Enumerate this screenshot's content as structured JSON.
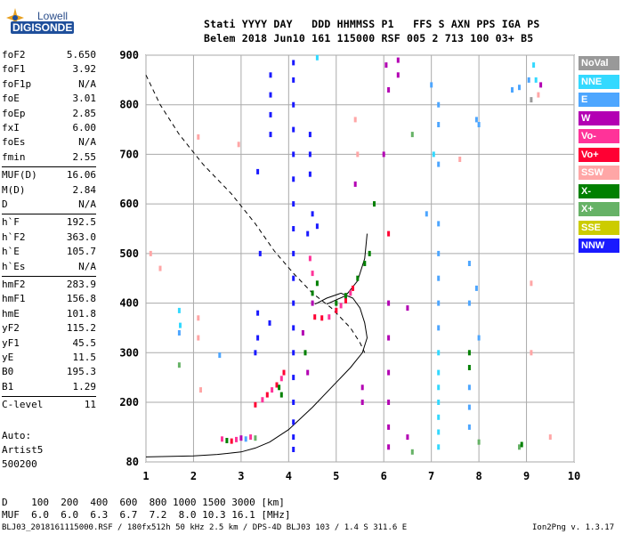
{
  "logo": {
    "top": "Lowell",
    "main": "DIGISONDE"
  },
  "header": {
    "line1": "Stati YYYY DAY   DDD HHMMSS P1   FFS S AXN PPS IGA PS",
    "line2": "Belem 2018 Jun10 161 115000 RSF 005 2 713 100 03+ B5"
  },
  "params": [
    {
      "name": "foF2",
      "value": "5.650"
    },
    {
      "name": "foF1",
      "value": "3.92"
    },
    {
      "name": "foF1p",
      "value": "N/A"
    },
    {
      "name": "foE",
      "value": "3.01"
    },
    {
      "name": "foEp",
      "value": "2.85"
    },
    {
      "name": "fxI",
      "value": "6.00"
    },
    {
      "name": "foEs",
      "value": "N/A"
    },
    {
      "name": "fmin",
      "value": "2.55"
    },
    {
      "name": "MUF(D)",
      "value": "16.06"
    },
    {
      "name": "M(D)",
      "value": "2.84"
    },
    {
      "name": "D",
      "value": "N/A"
    },
    {
      "name": "h`F",
      "value": "192.5"
    },
    {
      "name": "h`F2",
      "value": "363.0"
    },
    {
      "name": "h`E",
      "value": "105.7"
    },
    {
      "name": "h`Es",
      "value": "N/A"
    },
    {
      "name": "hmF2",
      "value": "283.9"
    },
    {
      "name": "hmF1",
      "value": "156.8"
    },
    {
      "name": "hmE",
      "value": "101.8"
    },
    {
      "name": "yF2",
      "value": "115.2"
    },
    {
      "name": "yF1",
      "value": "45.5"
    },
    {
      "name": "yE",
      "value": "11.5"
    },
    {
      "name": "B0",
      "value": "195.3"
    },
    {
      "name": "B1",
      "value": "1.29"
    },
    {
      "name": "C-level",
      "value": "11"
    }
  ],
  "auto": {
    "line1": "Auto:",
    "line2": "Artist5",
    "line3": "500200"
  },
  "legend": [
    {
      "label": "NoVal",
      "color": "#999999"
    },
    {
      "label": "NNE",
      "color": "#33d9ff"
    },
    {
      "label": "E",
      "color": "#4da6ff"
    },
    {
      "label": "W",
      "color": "#b300b3"
    },
    {
      "label": "Vo-",
      "color": "#ff3399"
    },
    {
      "label": "Vo+",
      "color": "#ff0033"
    },
    {
      "label": "SSW",
      "color": "#ffa6a6"
    },
    {
      "label": "X-",
      "color": "#008000"
    },
    {
      "label": "X+",
      "color": "#66b266"
    },
    {
      "label": "SSE",
      "color": "#cccc00"
    },
    {
      "label": "NNW",
      "color": "#1a1aff"
    }
  ],
  "chart_data": {
    "type": "scatter",
    "xlim": [
      1,
      10
    ],
    "ylim": [
      80,
      900
    ],
    "x_ticks": [
      "1",
      "2",
      "3",
      "4",
      "5",
      "6",
      "7",
      "8",
      "9",
      "10"
    ],
    "y_ticks": [
      "80",
      "200",
      "300",
      "400",
      "500",
      "600",
      "700",
      "800",
      "900"
    ],
    "grid": true,
    "profile_solid": {
      "x": [
        1.0,
        2.0,
        2.5,
        3.0,
        3.3,
        3.6,
        4.0,
        4.5,
        5.0,
        5.3,
        5.55,
        5.65,
        5.6,
        5.5,
        5.35,
        5.1,
        4.8,
        4.6,
        4.55
      ],
      "y": [
        90,
        92,
        95,
        100,
        108,
        120,
        145,
        190,
        240,
        270,
        300,
        330,
        360,
        390,
        410,
        420,
        410,
        400,
        398
      ]
    },
    "profile_upper_solid": {
      "x": [
        4.8,
        5.2,
        5.45,
        5.6,
        5.65
      ],
      "y": [
        398,
        415,
        445,
        490,
        540
      ]
    },
    "profile_dashed": {
      "x": [
        1.0,
        1.3,
        1.7,
        2.2,
        2.8,
        3.3,
        3.7,
        4.1,
        4.5,
        4.9,
        5.3,
        5.5,
        5.6
      ],
      "y": [
        860,
        800,
        740,
        680,
        620,
        560,
        505,
        460,
        420,
        390,
        350,
        320,
        300
      ]
    },
    "points": [
      {
        "x": 1.1,
        "y": 500,
        "dir": "SSW"
      },
      {
        "x": 1.3,
        "y": 470,
        "dir": "SSW"
      },
      {
        "x": 1.7,
        "y": 385,
        "dir": "NNE"
      },
      {
        "x": 1.72,
        "y": 355,
        "dir": "NNE"
      },
      {
        "x": 1.7,
        "y": 340,
        "dir": "E"
      },
      {
        "x": 1.7,
        "y": 275,
        "dir": "X+"
      },
      {
        "x": 2.1,
        "y": 370,
        "dir": "SSW"
      },
      {
        "x": 2.1,
        "y": 330,
        "dir": "SSW"
      },
      {
        "x": 2.15,
        "y": 225,
        "dir": "SSW"
      },
      {
        "x": 2.55,
        "y": 295,
        "dir": "E"
      },
      {
        "x": 2.95,
        "y": 720,
        "dir": "SSW"
      },
      {
        "x": 2.1,
        "y": 735,
        "dir": "SSW"
      },
      {
        "x": 2.7,
        "y": 123,
        "dir": "X-"
      },
      {
        "x": 2.8,
        "y": 122,
        "dir": "Vo+"
      },
      {
        "x": 2.9,
        "y": 125,
        "dir": "Vo-"
      },
      {
        "x": 3.0,
        "y": 128,
        "dir": "W"
      },
      {
        "x": 3.1,
        "y": 126,
        "dir": "E"
      },
      {
        "x": 3.2,
        "y": 130,
        "dir": "Vo-"
      },
      {
        "x": 3.3,
        "y": 128,
        "dir": "X+"
      },
      {
        "x": 2.6,
        "y": 126,
        "dir": "Vo-"
      },
      {
        "x": 3.35,
        "y": 665,
        "dir": "NNW"
      },
      {
        "x": 3.4,
        "y": 500,
        "dir": "NNW"
      },
      {
        "x": 3.35,
        "y": 380,
        "dir": "NNW"
      },
      {
        "x": 3.35,
        "y": 330,
        "dir": "NNW"
      },
      {
        "x": 3.3,
        "y": 300,
        "dir": "NNW"
      },
      {
        "x": 3.3,
        "y": 195,
        "dir": "Vo+"
      },
      {
        "x": 3.45,
        "y": 205,
        "dir": "Vo-"
      },
      {
        "x": 3.55,
        "y": 215,
        "dir": "Vo+"
      },
      {
        "x": 3.65,
        "y": 225,
        "dir": "Vo-"
      },
      {
        "x": 3.75,
        "y": 235,
        "dir": "Vo+"
      },
      {
        "x": 3.85,
        "y": 248,
        "dir": "Vo-"
      },
      {
        "x": 3.9,
        "y": 260,
        "dir": "Vo+"
      },
      {
        "x": 3.8,
        "y": 230,
        "dir": "X-"
      },
      {
        "x": 3.85,
        "y": 215,
        "dir": "X-"
      },
      {
        "x": 3.62,
        "y": 860,
        "dir": "NNW"
      },
      {
        "x": 3.62,
        "y": 820,
        "dir": "NNW"
      },
      {
        "x": 3.62,
        "y": 780,
        "dir": "NNW"
      },
      {
        "x": 3.62,
        "y": 740,
        "dir": "NNW"
      },
      {
        "x": 3.6,
        "y": 360,
        "dir": "NNW"
      },
      {
        "x": 4.1,
        "y": 885,
        "dir": "NNW"
      },
      {
        "x": 4.1,
        "y": 850,
        "dir": "NNW"
      },
      {
        "x": 4.1,
        "y": 800,
        "dir": "NNW"
      },
      {
        "x": 4.1,
        "y": 750,
        "dir": "NNW"
      },
      {
        "x": 4.1,
        "y": 700,
        "dir": "NNW"
      },
      {
        "x": 4.1,
        "y": 650,
        "dir": "NNW"
      },
      {
        "x": 4.1,
        "y": 600,
        "dir": "NNW"
      },
      {
        "x": 4.1,
        "y": 550,
        "dir": "NNW"
      },
      {
        "x": 4.1,
        "y": 500,
        "dir": "NNW"
      },
      {
        "x": 4.1,
        "y": 450,
        "dir": "NNW"
      },
      {
        "x": 4.1,
        "y": 400,
        "dir": "NNW"
      },
      {
        "x": 4.1,
        "y": 350,
        "dir": "NNW"
      },
      {
        "x": 4.1,
        "y": 300,
        "dir": "NNW"
      },
      {
        "x": 4.1,
        "y": 250,
        "dir": "NNW"
      },
      {
        "x": 4.1,
        "y": 200,
        "dir": "NNW"
      },
      {
        "x": 4.1,
        "y": 160,
        "dir": "NNW"
      },
      {
        "x": 4.1,
        "y": 130,
        "dir": "NNW"
      },
      {
        "x": 4.1,
        "y": 105,
        "dir": "NNW"
      },
      {
        "x": 4.45,
        "y": 740,
        "dir": "NNW"
      },
      {
        "x": 4.45,
        "y": 700,
        "dir": "NNW"
      },
      {
        "x": 4.45,
        "y": 660,
        "dir": "NNW"
      },
      {
        "x": 4.5,
        "y": 580,
        "dir": "NNW"
      },
      {
        "x": 4.4,
        "y": 540,
        "dir": "NNW"
      },
      {
        "x": 4.45,
        "y": 490,
        "dir": "Vo-"
      },
      {
        "x": 4.5,
        "y": 460,
        "dir": "Vo-"
      },
      {
        "x": 4.6,
        "y": 440,
        "dir": "X-"
      },
      {
        "x": 4.5,
        "y": 420,
        "dir": "X-"
      },
      {
        "x": 4.5,
        "y": 400,
        "dir": "W"
      },
      {
        "x": 4.55,
        "y": 372,
        "dir": "Vo+"
      },
      {
        "x": 4.7,
        "y": 370,
        "dir": "Vo+"
      },
      {
        "x": 4.85,
        "y": 372,
        "dir": "Vo-"
      },
      {
        "x": 5.0,
        "y": 385,
        "dir": "Vo+"
      },
      {
        "x": 5.1,
        "y": 395,
        "dir": "Vo-"
      },
      {
        "x": 5.2,
        "y": 405,
        "dir": "Vo+"
      },
      {
        "x": 5.3,
        "y": 420,
        "dir": "Vo-"
      },
      {
        "x": 5.35,
        "y": 430,
        "dir": "Vo+"
      },
      {
        "x": 5.0,
        "y": 400,
        "dir": "X-"
      },
      {
        "x": 5.2,
        "y": 415,
        "dir": "X-"
      },
      {
        "x": 5.45,
        "y": 450,
        "dir": "X-"
      },
      {
        "x": 5.6,
        "y": 480,
        "dir": "X-"
      },
      {
        "x": 5.7,
        "y": 500,
        "dir": "X-"
      },
      {
        "x": 5.8,
        "y": 600,
        "dir": "X-"
      },
      {
        "x": 4.3,
        "y": 340,
        "dir": "W"
      },
      {
        "x": 4.35,
        "y": 300,
        "dir": "X-"
      },
      {
        "x": 4.4,
        "y": 260,
        "dir": "W"
      },
      {
        "x": 4.6,
        "y": 555,
        "dir": "NNW"
      },
      {
        "x": 4.6,
        "y": 895,
        "dir": "NNE"
      },
      {
        "x": 5.4,
        "y": 640,
        "dir": "W"
      },
      {
        "x": 5.45,
        "y": 700,
        "dir": "SSW"
      },
      {
        "x": 5.4,
        "y": 770,
        "dir": "SSW"
      },
      {
        "x": 5.55,
        "y": 230,
        "dir": "W"
      },
      {
        "x": 5.55,
        "y": 200,
        "dir": "W"
      },
      {
        "x": 6.05,
        "y": 880,
        "dir": "W"
      },
      {
        "x": 6.1,
        "y": 830,
        "dir": "W"
      },
      {
        "x": 6.0,
        "y": 700,
        "dir": "W"
      },
      {
        "x": 6.1,
        "y": 540,
        "dir": "Vo+"
      },
      {
        "x": 6.1,
        "y": 400,
        "dir": "W"
      },
      {
        "x": 6.1,
        "y": 330,
        "dir": "W"
      },
      {
        "x": 6.1,
        "y": 260,
        "dir": "W"
      },
      {
        "x": 6.1,
        "y": 200,
        "dir": "W"
      },
      {
        "x": 6.1,
        "y": 150,
        "dir": "W"
      },
      {
        "x": 6.1,
        "y": 110,
        "dir": "W"
      },
      {
        "x": 6.3,
        "y": 890,
        "dir": "W"
      },
      {
        "x": 6.3,
        "y": 860,
        "dir": "W"
      },
      {
        "x": 6.5,
        "y": 390,
        "dir": "W"
      },
      {
        "x": 6.5,
        "y": 130,
        "dir": "W"
      },
      {
        "x": 6.6,
        "y": 100,
        "dir": "X+"
      },
      {
        "x": 6.6,
        "y": 740,
        "dir": "X+"
      },
      {
        "x": 6.9,
        "y": 580,
        "dir": "E"
      },
      {
        "x": 7.0,
        "y": 840,
        "dir": "E"
      },
      {
        "x": 7.05,
        "y": 700,
        "dir": "NNE"
      },
      {
        "x": 7.15,
        "y": 800,
        "dir": "E"
      },
      {
        "x": 7.15,
        "y": 760,
        "dir": "E"
      },
      {
        "x": 7.15,
        "y": 680,
        "dir": "E"
      },
      {
        "x": 7.15,
        "y": 560,
        "dir": "E"
      },
      {
        "x": 7.15,
        "y": 500,
        "dir": "E"
      },
      {
        "x": 7.15,
        "y": 450,
        "dir": "E"
      },
      {
        "x": 7.15,
        "y": 400,
        "dir": "E"
      },
      {
        "x": 7.15,
        "y": 350,
        "dir": "E"
      },
      {
        "x": 7.15,
        "y": 300,
        "dir": "NNE"
      },
      {
        "x": 7.15,
        "y": 260,
        "dir": "NNE"
      },
      {
        "x": 7.15,
        "y": 230,
        "dir": "NNE"
      },
      {
        "x": 7.15,
        "y": 200,
        "dir": "NNE"
      },
      {
        "x": 7.15,
        "y": 170,
        "dir": "NNE"
      },
      {
        "x": 7.15,
        "y": 140,
        "dir": "NNE"
      },
      {
        "x": 7.15,
        "y": 110,
        "dir": "NNE"
      },
      {
        "x": 7.6,
        "y": 690,
        "dir": "SSW"
      },
      {
        "x": 7.8,
        "y": 480,
        "dir": "E"
      },
      {
        "x": 7.8,
        "y": 400,
        "dir": "E"
      },
      {
        "x": 7.8,
        "y": 300,
        "dir": "X-"
      },
      {
        "x": 7.8,
        "y": 270,
        "dir": "X-"
      },
      {
        "x": 7.8,
        "y": 230,
        "dir": "E"
      },
      {
        "x": 7.8,
        "y": 190,
        "dir": "E"
      },
      {
        "x": 7.8,
        "y": 150,
        "dir": "E"
      },
      {
        "x": 7.95,
        "y": 770,
        "dir": "E"
      },
      {
        "x": 8.0,
        "y": 760,
        "dir": "E"
      },
      {
        "x": 7.95,
        "y": 430,
        "dir": "E"
      },
      {
        "x": 8.0,
        "y": 330,
        "dir": "E"
      },
      {
        "x": 8.0,
        "y": 120,
        "dir": "X+"
      },
      {
        "x": 8.7,
        "y": 830,
        "dir": "E"
      },
      {
        "x": 8.85,
        "y": 835,
        "dir": "E"
      },
      {
        "x": 9.05,
        "y": 850,
        "dir": "E"
      },
      {
        "x": 9.15,
        "y": 880,
        "dir": "NNE"
      },
      {
        "x": 9.2,
        "y": 850,
        "dir": "NNE"
      },
      {
        "x": 9.25,
        "y": 820,
        "dir": "SSW"
      },
      {
        "x": 9.3,
        "y": 840,
        "dir": "W"
      },
      {
        "x": 9.1,
        "y": 810,
        "dir": "NoVal"
      },
      {
        "x": 9.1,
        "y": 440,
        "dir": "SSW"
      },
      {
        "x": 9.1,
        "y": 300,
        "dir": "SSW"
      },
      {
        "x": 8.85,
        "y": 110,
        "dir": "X+"
      },
      {
        "x": 8.9,
        "y": 115,
        "dir": "X-"
      },
      {
        "x": 9.5,
        "y": 130,
        "dir": "SSW"
      }
    ]
  },
  "bottom": {
    "row1": "D    100  200  400  600  800 1000 1500 3000 [km]",
    "row2": "MUF  6.0  6.0  6.3  6.7  7.2  8.0 10.3 16.1 [MHz]",
    "footer_left": "BLJ03_2018161115000.RSF / 180fx512h 50 kHz 2.5 km / DPS-4D BLJ03 103 / 1.4 S 311.6 E",
    "footer_right": "Ion2Png v. 1.3.17"
  }
}
